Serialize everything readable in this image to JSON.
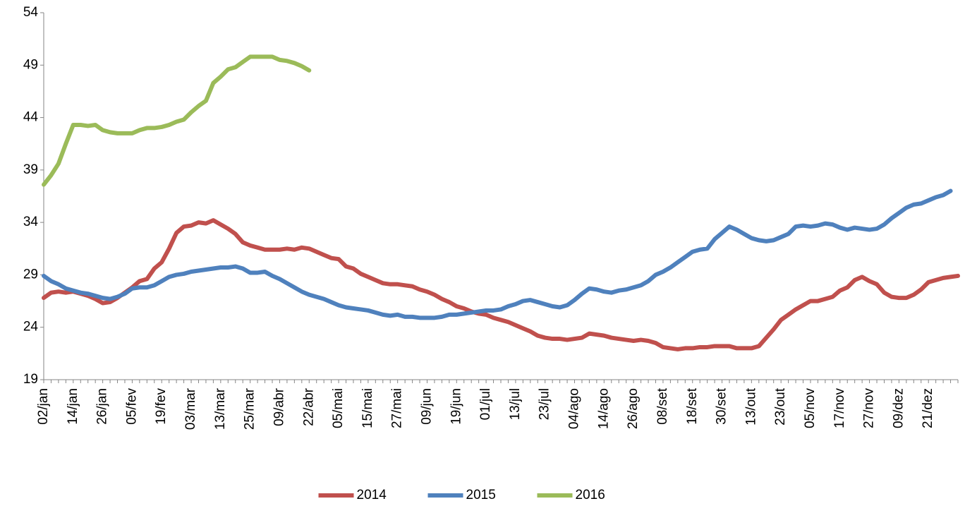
{
  "chart_data": {
    "type": "line",
    "categories": [
      "02/jan",
      null,
      null,
      null,
      "14/jan",
      null,
      null,
      null,
      "26/jan",
      null,
      null,
      null,
      "05/fev",
      null,
      null,
      null,
      "19/fev",
      null,
      null,
      null,
      "03/mar",
      null,
      null,
      null,
      "13/mar",
      null,
      null,
      null,
      "25/mar",
      null,
      null,
      null,
      "09/abr",
      null,
      null,
      null,
      "22/abr",
      null,
      null,
      null,
      "05/mai",
      null,
      null,
      null,
      "15/mai",
      null,
      null,
      null,
      "27/mai",
      null,
      null,
      null,
      "09/jun",
      null,
      null,
      null,
      "19/jun",
      null,
      null,
      null,
      "01/jul",
      null,
      null,
      null,
      "13/jul",
      null,
      null,
      null,
      "23/jul",
      null,
      null,
      null,
      "04/ago",
      null,
      null,
      null,
      "14/ago",
      null,
      null,
      null,
      "26/ago",
      null,
      null,
      null,
      "08/set",
      null,
      null,
      null,
      "18/set",
      null,
      null,
      null,
      "30/set",
      null,
      null,
      null,
      "13/out",
      null,
      null,
      null,
      "23/out",
      null,
      null,
      null,
      "05/nov",
      null,
      null,
      null,
      "17/nov",
      null,
      null,
      null,
      "27/nov",
      null,
      null,
      null,
      "09/dez",
      null,
      null,
      null,
      "21/dez",
      null,
      null,
      null,
      null
    ],
    "series": [
      {
        "name": "2014",
        "color": "#c0504d",
        "values": [
          26.8,
          27.3,
          27.4,
          27.3,
          27.4,
          27.2,
          27.0,
          26.7,
          26.3,
          26.4,
          26.8,
          27.3,
          27.8,
          28.4,
          28.6,
          29.6,
          30.2,
          31.5,
          33.0,
          33.6,
          33.7,
          34.0,
          33.9,
          34.2,
          33.8,
          33.4,
          32.9,
          32.1,
          31.8,
          31.6,
          31.4,
          31.4,
          31.4,
          31.5,
          31.4,
          31.6,
          31.5,
          31.2,
          30.9,
          30.6,
          30.5,
          29.8,
          29.6,
          29.1,
          28.8,
          28.5,
          28.2,
          28.1,
          28.1,
          28.0,
          27.9,
          27.6,
          27.4,
          27.1,
          26.7,
          26.4,
          26.0,
          25.8,
          25.5,
          25.3,
          25.2,
          24.9,
          24.7,
          24.5,
          24.2,
          23.9,
          23.6,
          23.2,
          23.0,
          22.9,
          22.9,
          22.8,
          22.9,
          23.0,
          23.4,
          23.3,
          23.2,
          23.0,
          22.9,
          22.8,
          22.7,
          22.8,
          22.7,
          22.5,
          22.1,
          22.0,
          21.9,
          22.0,
          22.0,
          22.1,
          22.1,
          22.2,
          22.2,
          22.2,
          22.0,
          22.0,
          22.0,
          22.2,
          23.0,
          23.8,
          24.7,
          25.2,
          25.7,
          26.1,
          26.5,
          26.5,
          26.7,
          26.9,
          27.5,
          27.8,
          28.5,
          28.8,
          28.4,
          28.1,
          27.3,
          26.9,
          26.8,
          26.8,
          27.1,
          27.6,
          28.3,
          28.5,
          28.7,
          28.8,
          28.9
        ]
      },
      {
        "name": "2015",
        "color": "#4f81bd",
        "values": [
          28.9,
          28.4,
          28.1,
          27.7,
          27.5,
          27.3,
          27.2,
          27.0,
          26.8,
          26.7,
          26.9,
          27.2,
          27.7,
          27.8,
          27.8,
          28.0,
          28.4,
          28.8,
          29.0,
          29.1,
          29.3,
          29.4,
          29.5,
          29.6,
          29.7,
          29.7,
          29.8,
          29.6,
          29.2,
          29.2,
          29.3,
          28.9,
          28.6,
          28.2,
          27.8,
          27.4,
          27.1,
          26.9,
          26.7,
          26.4,
          26.1,
          25.9,
          25.8,
          25.7,
          25.6,
          25.4,
          25.2,
          25.1,
          25.2,
          25.0,
          25.0,
          24.9,
          24.9,
          24.9,
          25.0,
          25.2,
          25.2,
          25.3,
          25.4,
          25.5,
          25.6,
          25.6,
          25.7,
          26.0,
          26.2,
          26.5,
          26.6,
          26.4,
          26.2,
          26.0,
          25.9,
          26.1,
          26.6,
          27.2,
          27.7,
          27.6,
          27.4,
          27.3,
          27.5,
          27.6,
          27.8,
          28.0,
          28.4,
          29.0,
          29.3,
          29.7,
          30.2,
          30.7,
          31.2,
          31.4,
          31.5,
          32.4,
          33.0,
          33.6,
          33.3,
          32.9,
          32.5,
          32.3,
          32.2,
          32.3,
          32.6,
          32.9,
          33.6,
          33.7,
          33.6,
          33.7,
          33.9,
          33.8,
          33.5,
          33.3,
          33.5,
          33.4,
          33.3,
          33.4,
          33.8,
          34.4,
          34.9,
          35.4,
          35.7,
          35.8,
          36.1,
          36.4,
          36.6,
          37.0,
          null
        ]
      },
      {
        "name": "2016",
        "color": "#9bbb59",
        "values": [
          37.6,
          38.5,
          39.6,
          41.5,
          43.3,
          43.3,
          43.2,
          43.3,
          42.8,
          42.6,
          42.5,
          42.5,
          42.5,
          42.8,
          43.0,
          43.0,
          43.1,
          43.3,
          43.6,
          43.8,
          44.5,
          45.1,
          45.6,
          47.3,
          47.9,
          48.6,
          48.8,
          49.3,
          49.8,
          49.8,
          49.8,
          49.8,
          49.5,
          49.4,
          49.2,
          48.9,
          48.5,
          null,
          null,
          null,
          null,
          null,
          null,
          null,
          null,
          null,
          null,
          null,
          null,
          null,
          null,
          null,
          null,
          null,
          null,
          null,
          null,
          null,
          null,
          null,
          null,
          null,
          null,
          null,
          null,
          null,
          null,
          null,
          null,
          null,
          null,
          null,
          null,
          null,
          null,
          null,
          null,
          null,
          null,
          null,
          null,
          null,
          null,
          null,
          null,
          null,
          null,
          null,
          null,
          null,
          null,
          null,
          null,
          null,
          null,
          null,
          null,
          null,
          null,
          null,
          null,
          null,
          null,
          null,
          null,
          null,
          null,
          null,
          null,
          null,
          null,
          null,
          null,
          null,
          null,
          null,
          null,
          null,
          null,
          null,
          null,
          null,
          null,
          null,
          null
        ]
      }
    ],
    "ylim": [
      19,
      54
    ],
    "yticks": [
      19,
      24,
      29,
      34,
      39,
      44,
      49,
      54
    ],
    "grid": false,
    "legend": "bottom"
  }
}
